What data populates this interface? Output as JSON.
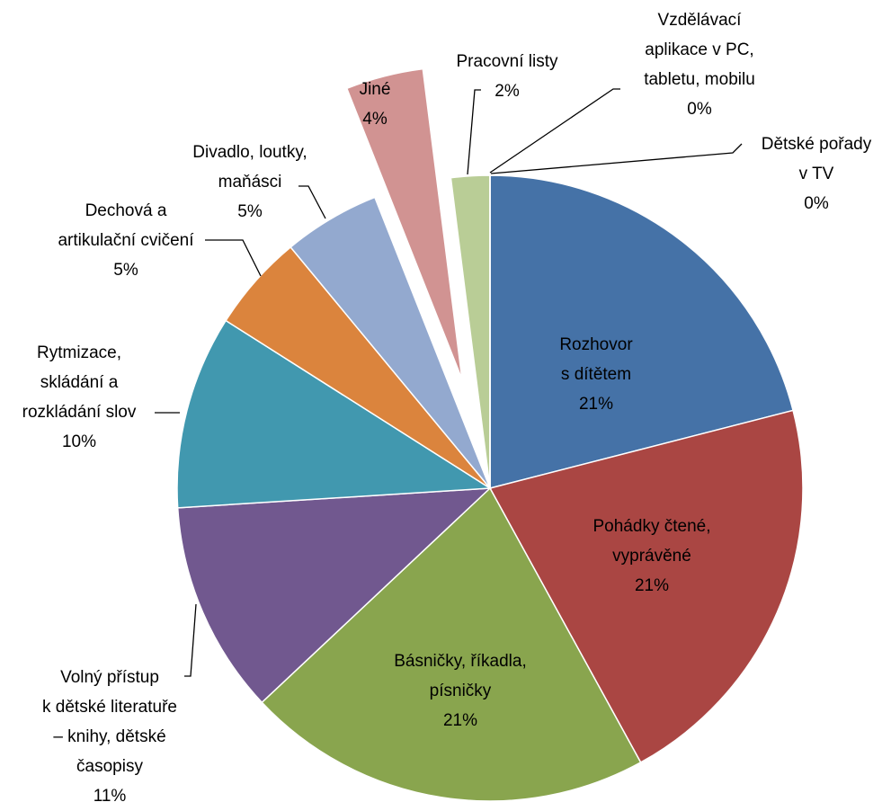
{
  "chart_data": {
    "type": "pie",
    "categories": [
      "Rozhovor\ns dítětem",
      "Pohádky čtené,\nvyprávěné",
      "Básničky, říkadla,\npísničky",
      "Volný přístup\nk dětské literatuře\n– knihy, dětské\ncasopisy",
      "Rytmizace,\nskládání a\nrozkládání slov",
      "Dechová a\nartikulační cvičení",
      "Divadlo, loutky,\nmaňásci",
      "Jiné",
      "Pracovní listy",
      "Vzdělávací\naplikace v PC,\ntabletu, mobilu",
      "Dětské pořady\nv TV"
    ],
    "values": [
      21,
      21,
      21,
      11,
      10,
      5,
      5,
      4,
      2,
      0,
      0
    ],
    "value_labels": [
      "21%",
      "21%",
      "21%",
      "11%",
      "10%",
      "5%",
      "5%",
      "4%",
      "2%",
      "0%",
      "0%"
    ],
    "colors": [
      "#4572A7",
      "#AA4643",
      "#89A54E",
      "#71588F",
      "#4198AF",
      "#DB843D",
      "#93A9CF",
      "#D19392",
      "#B9CD96",
      "#A99BBD",
      "#92C5D6"
    ]
  }
}
